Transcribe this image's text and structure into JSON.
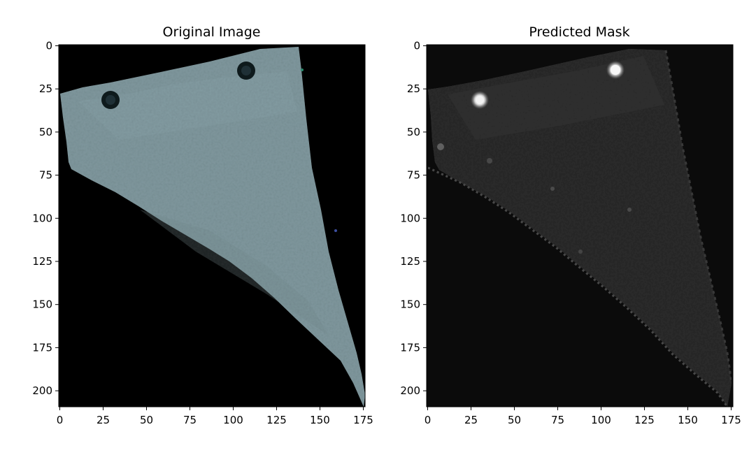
{
  "panels": [
    {
      "title": "Original Image",
      "x_ticks": [
        "0",
        "25",
        "50",
        "75",
        "100",
        "125",
        "150",
        "175"
      ],
      "y_ticks": [
        "0",
        "25",
        "50",
        "75",
        "100",
        "125",
        "150",
        "175",
        "200"
      ],
      "background_color": "#000000",
      "shape_color": "#7f979d",
      "spot_color": "#0e1a1c"
    },
    {
      "title": "Predicted Mask",
      "x_ticks": [
        "0",
        "25",
        "50",
        "75",
        "100",
        "125",
        "150",
        "175"
      ],
      "y_ticks": [
        "0",
        "25",
        "50",
        "75",
        "100",
        "125",
        "150",
        "175",
        "200"
      ],
      "background_color": "#0b0b0b",
      "shape_color": "#2a2a2a",
      "spot_color": "#f2f2f2"
    }
  ]
}
